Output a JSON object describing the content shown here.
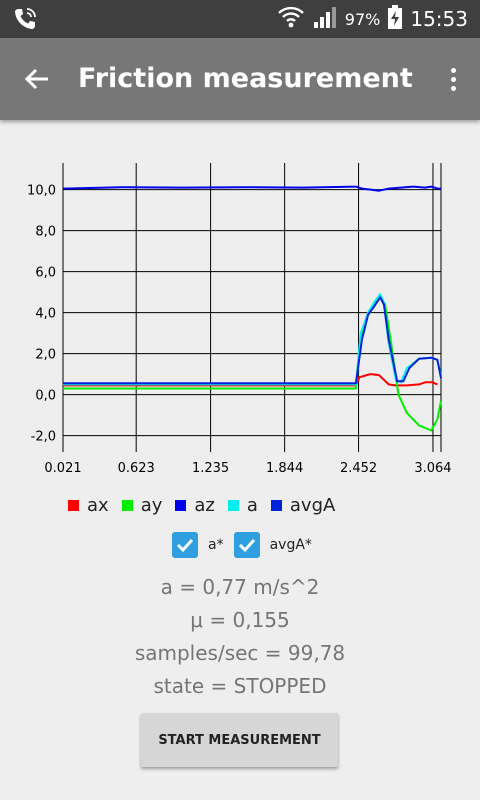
{
  "status_bar": {
    "battery": "97%",
    "time": "15:53",
    "icons": [
      "phone-call-icon",
      "wifi-icon",
      "signal-icon",
      "battery-charging-icon"
    ]
  },
  "app_bar": {
    "title": "Friction measurement",
    "back_icon": "arrow-back-icon",
    "menu_icon": "more-vert-icon"
  },
  "chart_data": {
    "type": "line",
    "x_ticks": [
      "0.021",
      "0.623",
      "1.235",
      "1.844",
      "2.452",
      "3.064"
    ],
    "y_ticks": [
      "-2,0",
      "0,0",
      "2,0",
      "4,0",
      "6,0",
      "8,0",
      "10,0"
    ],
    "xlim": [
      0.021,
      3.13
    ],
    "ylim": [
      -2.8,
      11.3
    ],
    "grid": true,
    "series": [
      {
        "name": "ax",
        "color": "#ff0000",
        "x": [
          0.021,
          2.43,
          2.46,
          2.55,
          2.62,
          2.7,
          2.75,
          2.85,
          2.95,
          3.0,
          3.06,
          3.1
        ],
        "y": [
          0.45,
          0.45,
          0.85,
          1.0,
          0.95,
          0.5,
          0.45,
          0.45,
          0.5,
          0.6,
          0.6,
          0.5
        ]
      },
      {
        "name": "ay",
        "color": "#00ee00",
        "x": [
          0.021,
          2.43,
          2.47,
          2.53,
          2.58,
          2.63,
          2.67,
          2.72,
          2.78,
          2.85,
          2.95,
          3.05,
          3.1,
          3.13
        ],
        "y": [
          0.3,
          0.3,
          2.8,
          3.9,
          4.3,
          4.8,
          4.4,
          2.5,
          0.0,
          -0.9,
          -1.5,
          -1.75,
          -1.2,
          -0.3
        ]
      },
      {
        "name": "az",
        "color": "#0000ee",
        "x": [
          0.021,
          0.5,
          1.0,
          1.5,
          2.0,
          2.43,
          2.48,
          2.55,
          2.62,
          2.7,
          2.8,
          2.9,
          3.0,
          3.05,
          3.1,
          3.13
        ],
        "y": [
          10.05,
          10.12,
          10.1,
          10.12,
          10.1,
          10.15,
          10.05,
          10.0,
          9.95,
          10.05,
          10.1,
          10.15,
          10.1,
          10.15,
          10.05,
          10.05
        ]
      },
      {
        "name": "a",
        "color": "#00eeee",
        "x": [
          0.021,
          2.43,
          2.47,
          2.53,
          2.58,
          2.63,
          2.66,
          2.7,
          2.76,
          2.8,
          2.85,
          2.95,
          3.05,
          3.1,
          3.13
        ],
        "y": [
          0.5,
          0.5,
          3.0,
          4.0,
          4.5,
          4.9,
          4.5,
          2.5,
          0.7,
          0.6,
          1.3,
          1.75,
          1.8,
          1.7,
          0.9
        ]
      },
      {
        "name": "avgA",
        "color": "#0022dd",
        "x": [
          0.021,
          2.43,
          2.48,
          2.53,
          2.58,
          2.63,
          2.66,
          2.7,
          2.77,
          2.82,
          2.87,
          2.95,
          3.05,
          3.1,
          3.13
        ],
        "y": [
          0.55,
          0.55,
          2.7,
          3.9,
          4.3,
          4.75,
          4.4,
          2.7,
          0.65,
          0.65,
          1.3,
          1.75,
          1.8,
          1.7,
          0.8
        ]
      }
    ]
  },
  "legend": [
    {
      "label": "ax",
      "color": "#ff0000"
    },
    {
      "label": "ay",
      "color": "#00ee00"
    },
    {
      "label": "az",
      "color": "#0000ee"
    },
    {
      "label": "a",
      "color": "#00eeee"
    },
    {
      "label": "avgA",
      "color": "#0022dd"
    }
  ],
  "checkboxes": [
    {
      "label": "a*",
      "checked": true
    },
    {
      "label": "avgA*",
      "checked": true
    }
  ],
  "info": {
    "a": "a = 0,77 m/s^2",
    "mu": "μ = 0,155",
    "samples": "samples/sec = 99,78",
    "state": "state = STOPPED"
  },
  "button": {
    "label": "START MEASUREMENT"
  }
}
